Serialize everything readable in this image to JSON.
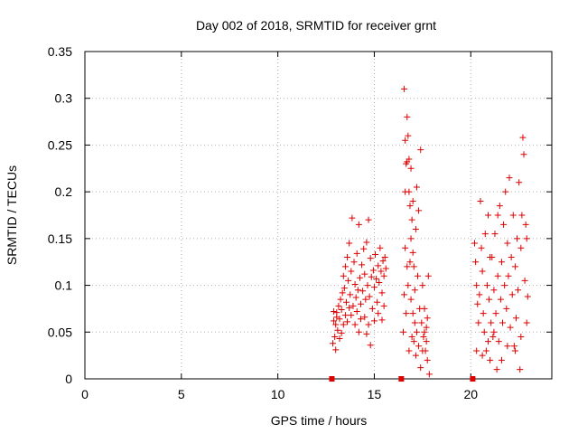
{
  "chart_data": {
    "type": "scatter",
    "title": "Day 002 of 2018, SRMTID for receiver grnt",
    "xlabel": "GPS time / hours",
    "ylabel": "SRMTID / TECUs",
    "xlim": [
      0,
      24.2
    ],
    "ylim": [
      0,
      0.35
    ],
    "xticks": [
      0,
      5,
      10,
      15,
      20
    ],
    "xtick_labels": [
      "0",
      "5",
      "10",
      "15",
      "20"
    ],
    "yticks": [
      0,
      0.05,
      0.1,
      0.15,
      0.2,
      0.25,
      0.3,
      0.35
    ],
    "ytick_labels": [
      "0",
      "0.05",
      "0.1",
      "0.15",
      "0.2",
      "0.25",
      "0.3",
      "0.35"
    ],
    "grid": true,
    "marker": "+",
    "color": "#dd0000",
    "series": [
      {
        "name": "",
        "points": [
          [
            12.9,
            0.062
          ],
          [
            12.95,
            0.045
          ],
          [
            13.0,
            0.058
          ],
          [
            13.05,
            0.071
          ],
          [
            13.1,
            0.052
          ],
          [
            13.15,
            0.078
          ],
          [
            13.2,
            0.064
          ],
          [
            13.25,
            0.085
          ],
          [
            13.3,
            0.049
          ],
          [
            13.35,
            0.092
          ],
          [
            13.4,
            0.11
          ],
          [
            13.45,
            0.097
          ],
          [
            13.5,
            0.12
          ],
          [
            13.55,
            0.082
          ],
          [
            13.6,
            0.13
          ],
          [
            13.65,
            0.105
          ],
          [
            13.7,
            0.145
          ],
          [
            13.75,
            0.09
          ],
          [
            13.8,
            0.115
          ],
          [
            13.85,
            0.172
          ],
          [
            13.9,
            0.078
          ],
          [
            13.95,
            0.125
          ],
          [
            14.0,
            0.101
          ],
          [
            14.05,
            0.087
          ],
          [
            14.1,
            0.134
          ],
          [
            14.15,
            0.095
          ],
          [
            14.2,
            0.165
          ],
          [
            14.25,
            0.108
          ],
          [
            14.3,
            0.08
          ],
          [
            14.35,
            0.122
          ],
          [
            14.4,
            0.094
          ],
          [
            14.45,
            0.139
          ],
          [
            14.5,
            0.112
          ],
          [
            14.55,
            0.085
          ],
          [
            14.6,
            0.146
          ],
          [
            14.65,
            0.1
          ],
          [
            14.7,
            0.17
          ],
          [
            14.75,
            0.088
          ],
          [
            14.8,
            0.129
          ],
          [
            14.85,
            0.109
          ],
          [
            14.9,
            0.075
          ],
          [
            14.95,
            0.116
          ],
          [
            15.0,
            0.098
          ],
          [
            15.05,
            0.133
          ],
          [
            15.1,
            0.107
          ],
          [
            15.15,
            0.082
          ],
          [
            15.2,
            0.121
          ],
          [
            15.25,
            0.103
          ],
          [
            15.3,
            0.14
          ],
          [
            15.35,
            0.115
          ],
          [
            15.4,
            0.092
          ],
          [
            15.45,
            0.126
          ],
          [
            15.5,
            0.11
          ],
          [
            15.55,
            0.13
          ],
          [
            15.6,
            0.118
          ],
          [
            12.85,
            0.038
          ],
          [
            12.9,
            0.072
          ],
          [
            13.0,
            0.031
          ],
          [
            13.05,
            0.066
          ],
          [
            13.2,
            0.043
          ],
          [
            13.3,
            0.074
          ],
          [
            13.4,
            0.058
          ],
          [
            13.5,
            0.068
          ],
          [
            13.6,
            0.061
          ],
          [
            13.7,
            0.076
          ],
          [
            13.8,
            0.068
          ],
          [
            14.0,
            0.058
          ],
          [
            14.1,
            0.072
          ],
          [
            14.2,
            0.05
          ],
          [
            14.3,
            0.064
          ],
          [
            14.5,
            0.066
          ],
          [
            14.6,
            0.048
          ],
          [
            14.7,
            0.058
          ],
          [
            14.8,
            0.036
          ],
          [
            15.0,
            0.062
          ],
          [
            15.2,
            0.07
          ],
          [
            15.4,
            0.063
          ],
          [
            15.5,
            0.078
          ],
          [
            16.55,
            0.31
          ],
          [
            16.6,
            0.255
          ],
          [
            16.65,
            0.23
          ],
          [
            16.7,
            0.28
          ],
          [
            16.75,
            0.26
          ],
          [
            16.8,
            0.2
          ],
          [
            16.85,
            0.185
          ],
          [
            16.9,
            0.15
          ],
          [
            16.95,
            0.17
          ],
          [
            17.0,
            0.135
          ],
          [
            17.05,
            0.12
          ],
          [
            17.1,
            0.095
          ],
          [
            17.15,
            0.16
          ],
          [
            17.2,
            0.205
          ],
          [
            17.25,
            0.11
          ],
          [
            17.3,
            0.18
          ],
          [
            17.35,
            0.075
          ],
          [
            17.4,
            0.245
          ],
          [
            17.45,
            0.06
          ],
          [
            17.5,
            0.1
          ],
          [
            17.55,
            0.045
          ],
          [
            17.6,
            0.075
          ],
          [
            17.65,
            0.03
          ],
          [
            17.7,
            0.055
          ],
          [
            17.75,
            0.02
          ],
          [
            17.8,
            0.11
          ],
          [
            17.85,
            0.005
          ],
          [
            16.5,
            0.05
          ],
          [
            16.55,
            0.09
          ],
          [
            16.6,
            0.14
          ],
          [
            16.65,
            0.07
          ],
          [
            16.7,
            0.12
          ],
          [
            16.75,
            0.1
          ],
          [
            16.8,
            0.03
          ],
          [
            16.85,
            0.125
          ],
          [
            16.9,
            0.085
          ],
          [
            16.95,
            0.045
          ],
          [
            17.0,
            0.07
          ],
          [
            17.05,
            0.04
          ],
          [
            17.1,
            0.06
          ],
          [
            17.15,
            0.025
          ],
          [
            17.2,
            0.05
          ],
          [
            17.3,
            0.035
          ],
          [
            17.4,
            0.012
          ],
          [
            17.5,
            0.03
          ],
          [
            17.6,
            0.05
          ],
          [
            17.7,
            0.04
          ],
          [
            17.75,
            0.065
          ],
          [
            16.6,
            0.2
          ],
          [
            16.7,
            0.232
          ],
          [
            16.8,
            0.235
          ],
          [
            16.9,
            0.225
          ],
          [
            17.0,
            0.19
          ],
          [
            20.2,
            0.145
          ],
          [
            20.25,
            0.125
          ],
          [
            20.3,
            0.1
          ],
          [
            20.35,
            0.08
          ],
          [
            20.4,
            0.06
          ],
          [
            20.45,
            0.09
          ],
          [
            20.5,
            0.19
          ],
          [
            20.55,
            0.14
          ],
          [
            20.6,
            0.115
          ],
          [
            20.65,
            0.07
          ],
          [
            20.7,
            0.05
          ],
          [
            20.75,
            0.155
          ],
          [
            20.8,
            0.03
          ],
          [
            20.85,
            0.1
          ],
          [
            20.9,
            0.175
          ],
          [
            20.95,
            0.085
          ],
          [
            21.0,
            0.02
          ],
          [
            21.05,
            0.06
          ],
          [
            21.1,
            0.13
          ],
          [
            21.15,
            0.045
          ],
          [
            21.2,
            0.095
          ],
          [
            21.25,
            0.155
          ],
          [
            21.3,
            0.07
          ],
          [
            21.35,
            0.01
          ],
          [
            21.4,
            0.11
          ],
          [
            21.45,
            0.04
          ],
          [
            21.5,
            0.185
          ],
          [
            21.55,
            0.085
          ],
          [
            21.6,
            0.125
          ],
          [
            21.65,
            0.06
          ],
          [
            21.7,
            0.165
          ],
          [
            21.75,
            0.1
          ],
          [
            21.8,
            0.2
          ],
          [
            21.85,
            0.075
          ],
          [
            21.9,
            0.145
          ],
          [
            21.95,
            0.11
          ],
          [
            22.0,
            0.215
          ],
          [
            22.05,
            0.055
          ],
          [
            22.1,
            0.13
          ],
          [
            22.15,
            0.09
          ],
          [
            22.2,
            0.175
          ],
          [
            22.25,
            0.035
          ],
          [
            22.3,
            0.12
          ],
          [
            22.35,
            0.065
          ],
          [
            22.4,
            0.15
          ],
          [
            22.45,
            0.095
          ],
          [
            22.5,
            0.21
          ],
          [
            22.55,
            0.01
          ],
          [
            22.6,
            0.14
          ],
          [
            22.65,
            0.175
          ],
          [
            22.7,
            0.258
          ],
          [
            22.75,
            0.24
          ],
          [
            22.8,
            0.105
          ],
          [
            22.85,
            0.165
          ],
          [
            22.9,
            0.15
          ],
          [
            22.95,
            0.088
          ],
          [
            20.3,
            0.03
          ],
          [
            20.6,
            0.025
          ],
          [
            20.9,
            0.04
          ],
          [
            21.2,
            0.05
          ],
          [
            21.6,
            0.02
          ],
          [
            21.9,
            0.035
          ],
          [
            22.3,
            0.03
          ],
          [
            22.6,
            0.045
          ],
          [
            22.9,
            0.06
          ],
          [
            21.0,
            0.13
          ],
          [
            21.4,
            0.175
          ]
        ]
      }
    ],
    "zero_markers": {
      "color": "#dd0000",
      "x": [
        12.8,
        16.4,
        20.1
      ]
    }
  }
}
